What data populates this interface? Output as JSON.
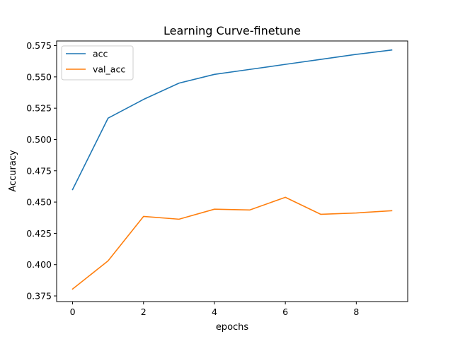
{
  "chart_data": {
    "type": "line",
    "title": "Learning Curve-finetune",
    "xlabel": "epochs",
    "ylabel": "Accuracy",
    "xlim": [
      -0.45,
      9.45
    ],
    "ylim": [
      0.3705,
      0.5787
    ],
    "x_ticks": [
      0,
      2,
      4,
      6,
      8
    ],
    "y_ticks": [
      0.375,
      0.4,
      0.425,
      0.45,
      0.475,
      0.5,
      0.525,
      0.55,
      0.575
    ],
    "x_tick_labels": [
      "0",
      "2",
      "4",
      "6",
      "8"
    ],
    "y_tick_labels": [
      "0.375",
      "0.400",
      "0.425",
      "0.450",
      "0.475",
      "0.500",
      "0.525",
      "0.550",
      "0.575"
    ],
    "x": [
      0,
      1,
      2,
      3,
      4,
      5,
      6,
      7,
      8,
      9
    ],
    "series": [
      {
        "name": "acc",
        "color": "#1f77b4",
        "values": [
          0.46,
          0.517,
          0.532,
          0.545,
          0.552,
          0.556,
          0.56,
          0.564,
          0.568,
          0.5715
        ]
      },
      {
        "name": "val_acc",
        "color": "#ff7f0e",
        "values": [
          0.3805,
          0.403,
          0.4385,
          0.4363,
          0.4443,
          0.4437,
          0.4538,
          0.4402,
          0.4413,
          0.4431
        ]
      }
    ],
    "grid": false,
    "legend_position": "upper-left"
  }
}
